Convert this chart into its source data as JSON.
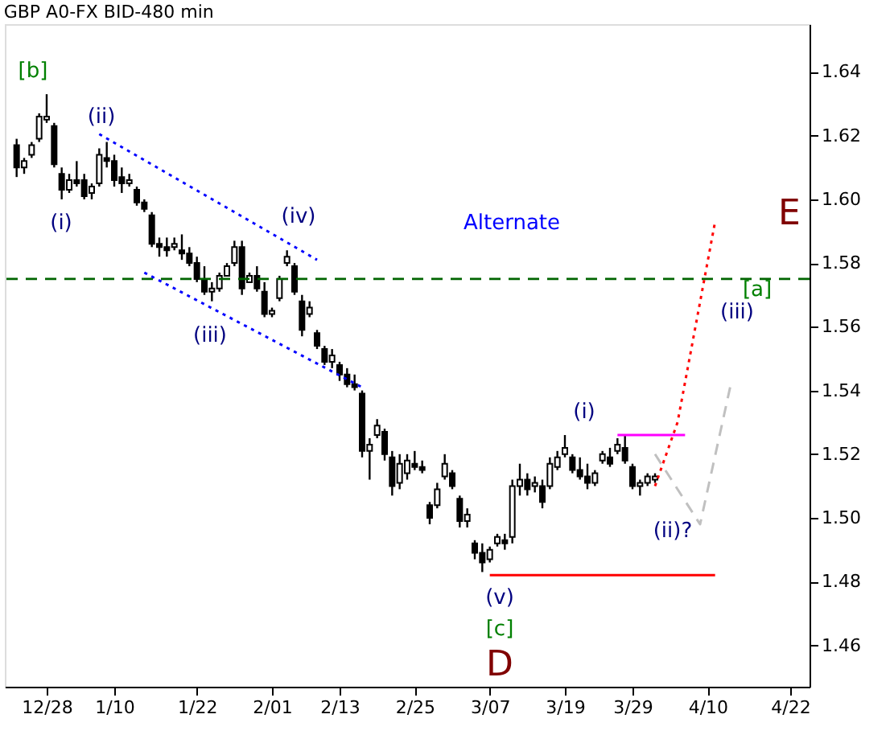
{
  "chart_data": {
    "type": "candlestick",
    "title": "GBP A0-FX BID-480 min",
    "categories": [
      null,
      null,
      null,
      null,
      "12/28",
      null,
      null,
      null,
      null,
      null,
      null,
      null,
      null,
      "1/10",
      null,
      null,
      null,
      null,
      null,
      null,
      null,
      null,
      null,
      null,
      "1/22",
      null,
      null,
      null,
      null,
      null,
      null,
      null,
      null,
      null,
      "2/01",
      null,
      null,
      null,
      null,
      null,
      null,
      null,
      null,
      "2/13",
      null,
      null,
      null,
      null,
      null,
      null,
      null,
      null,
      null,
      "2/25",
      null,
      null,
      null,
      null,
      null,
      null,
      null,
      null,
      null,
      "3/07",
      null,
      null,
      null,
      null,
      null,
      null,
      null,
      null,
      null,
      "3/19",
      null,
      null,
      null,
      null,
      null,
      null,
      null,
      null,
      "3/29",
      null,
      null,
      null,
      null,
      null,
      null,
      null,
      null,
      null,
      "4/10",
      null,
      null,
      null,
      null,
      null,
      null,
      null,
      null,
      null,
      null,
      "4/22",
      null
    ],
    "ohlc": [
      [
        1.617,
        1.619,
        1.607,
        1.61
      ],
      [
        1.61,
        1.613,
        1.608,
        1.612
      ],
      [
        1.614,
        1.618,
        1.613,
        1.617
      ],
      [
        1.619,
        1.627,
        1.618,
        1.626
      ],
      [
        1.625,
        1.633,
        1.624,
        1.626
      ],
      [
        1.623,
        1.624,
        1.61,
        1.611
      ],
      [
        1.608,
        1.61,
        1.6,
        1.603
      ],
      [
        1.603,
        1.608,
        1.602,
        1.606
      ],
      [
        1.606,
        1.612,
        1.604,
        1.605
      ],
      [
        1.606,
        1.608,
        1.6,
        1.601
      ],
      [
        1.602,
        1.605,
        1.6,
        1.604
      ],
      [
        1.605,
        1.616,
        1.604,
        1.614
      ],
      [
        1.613,
        1.618,
        1.61,
        1.612
      ],
      [
        1.612,
        1.614,
        1.604,
        1.606
      ],
      [
        1.607,
        1.61,
        1.602,
        1.605
      ],
      [
        1.605,
        1.608,
        1.604,
        1.606
      ],
      [
        1.603,
        1.604,
        1.598,
        1.599
      ],
      [
        1.599,
        1.6,
        1.596,
        1.597
      ],
      [
        1.595,
        1.596,
        1.585,
        1.586
      ],
      [
        1.586,
        1.588,
        1.582,
        1.585
      ],
      [
        1.585,
        1.588,
        1.582,
        1.584
      ],
      [
        1.585,
        1.588,
        1.584,
        1.586
      ],
      [
        1.584,
        1.589,
        1.581,
        1.583
      ],
      [
        1.583,
        1.585,
        1.579,
        1.58
      ],
      [
        1.58,
        1.582,
        1.574,
        1.575
      ],
      [
        1.575,
        1.579,
        1.57,
        1.571
      ],
      [
        1.571,
        1.574,
        1.568,
        1.572
      ],
      [
        1.572,
        1.577,
        1.571,
        1.576
      ],
      [
        1.576,
        1.58,
        1.576,
        1.579
      ],
      [
        1.58,
        1.587,
        1.579,
        1.585
      ],
      [
        1.585,
        1.587,
        1.57,
        1.572
      ],
      [
        1.574,
        1.577,
        1.574,
        1.576
      ],
      [
        1.576,
        1.579,
        1.571,
        1.572
      ],
      [
        1.571,
        1.574,
        1.563,
        1.564
      ],
      [
        1.564,
        1.566,
        1.563,
        1.565
      ],
      [
        1.569,
        1.576,
        1.568,
        1.575
      ],
      [
        1.58,
        1.584,
        1.579,
        1.582
      ],
      [
        1.579,
        1.58,
        1.57,
        1.571
      ],
      [
        1.568,
        1.57,
        1.557,
        1.559
      ],
      [
        1.564,
        1.568,
        1.563,
        1.566
      ],
      [
        1.558,
        1.559,
        1.553,
        1.554
      ],
      [
        1.553,
        1.554,
        1.548,
        1.549
      ],
      [
        1.549,
        1.553,
        1.547,
        1.551
      ],
      [
        1.548,
        1.549,
        1.543,
        1.545
      ],
      [
        1.545,
        1.547,
        1.541,
        1.542
      ],
      [
        1.542,
        1.545,
        1.54,
        1.541
      ],
      [
        1.539,
        1.54,
        1.519,
        1.521
      ],
      [
        1.521,
        1.525,
        1.512,
        1.523
      ],
      [
        1.526,
        1.531,
        1.525,
        1.529
      ],
      [
        1.527,
        1.528,
        1.518,
        1.52
      ],
      [
        1.519,
        1.521,
        1.507,
        1.51
      ],
      [
        1.511,
        1.52,
        1.509,
        1.517
      ],
      [
        1.514,
        1.52,
        1.512,
        1.518
      ],
      [
        1.517,
        1.521,
        1.515,
        1.516
      ],
      [
        1.516,
        1.518,
        1.514,
        1.515
      ],
      [
        1.504,
        1.505,
        1.498,
        1.5
      ],
      [
        1.504,
        1.511,
        1.503,
        1.509
      ],
      [
        1.513,
        1.52,
        1.512,
        1.517
      ],
      [
        1.514,
        1.515,
        1.509,
        1.51
      ],
      [
        1.506,
        1.507,
        1.497,
        1.499
      ],
      [
        1.499,
        1.503,
        1.497,
        1.501
      ],
      [
        1.492,
        1.493,
        1.487,
        1.489
      ],
      [
        1.489,
        1.492,
        1.483,
        1.486
      ],
      [
        1.487,
        1.491,
        1.486,
        1.49
      ],
      [
        1.492,
        1.495,
        1.491,
        1.494
      ],
      [
        1.493,
        1.495,
        1.49,
        1.492
      ],
      [
        1.494,
        1.512,
        1.492,
        1.51
      ],
      [
        1.51,
        1.517,
        1.507,
        1.512
      ],
      [
        1.512,
        1.514,
        1.507,
        1.509
      ],
      [
        1.51,
        1.513,
        1.508,
        1.511
      ],
      [
        1.51,
        1.512,
        1.503,
        1.505
      ],
      [
        1.51,
        1.519,
        1.509,
        1.517
      ],
      [
        1.516,
        1.521,
        1.515,
        1.519
      ],
      [
        1.52,
        1.526,
        1.519,
        1.522
      ],
      [
        1.519,
        1.52,
        1.514,
        1.515
      ],
      [
        1.515,
        1.519,
        1.512,
        1.513
      ],
      [
        1.513,
        1.517,
        1.509,
        1.511
      ],
      [
        1.511,
        1.515,
        1.51,
        1.514
      ],
      [
        1.518,
        1.521,
        1.517,
        1.52
      ],
      [
        1.519,
        1.522,
        1.516,
        1.517
      ],
      [
        1.521,
        1.525,
        1.52,
        1.523
      ],
      [
        1.522,
        1.526,
        1.517,
        1.518
      ],
      [
        1.516,
        1.517,
        1.509,
        1.51
      ],
      [
        1.51,
        1.512,
        1.507,
        1.511
      ],
      [
        1.511,
        1.514,
        1.51,
        1.513
      ],
      [
        1.512,
        1.514,
        1.511,
        1.513
      ],
      null,
      null,
      null,
      null,
      null,
      null,
      null,
      null,
      null,
      null,
      null,
      null,
      null,
      null,
      null,
      null,
      null,
      null,
      null
    ],
    "color": "#000000",
    "series": [
      {
        "type": "line",
        "color": "#0000ff",
        "line_style": "dotted",
        "values": [
          null,
          null,
          null,
          null,
          null,
          null,
          null,
          null,
          null,
          null,
          null,
          1.6205,
          null,
          null,
          null,
          null,
          null,
          null,
          null,
          null,
          null,
          null,
          null,
          null,
          null,
          null,
          null,
          null,
          null,
          null,
          null,
          null,
          null,
          null,
          null,
          null,
          null,
          null,
          null,
          null,
          1.581,
          null,
          null,
          null,
          null,
          null,
          null,
          null,
          null,
          null,
          null,
          null,
          null,
          null,
          null,
          null,
          null,
          null,
          null,
          null,
          null,
          null,
          null,
          null,
          null,
          null,
          null,
          null,
          null,
          null,
          null,
          null,
          null,
          null,
          null,
          null,
          null,
          null,
          null,
          null,
          null,
          null,
          null,
          null,
          null,
          null,
          null,
          null,
          null,
          null,
          null,
          null,
          null,
          null,
          null,
          null,
          null,
          null,
          null,
          null,
          null,
          null,
          null,
          null,
          null
        ]
      },
      {
        "type": "line",
        "color": "#0000ff",
        "line_style": "dotted",
        "values": [
          null,
          null,
          null,
          null,
          null,
          null,
          null,
          null,
          null,
          null,
          null,
          null,
          null,
          null,
          null,
          null,
          null,
          1.577,
          null,
          null,
          null,
          null,
          null,
          null,
          null,
          null,
          null,
          null,
          null,
          null,
          null,
          null,
          null,
          null,
          null,
          null,
          null,
          null,
          null,
          null,
          null,
          null,
          null,
          null,
          null,
          null,
          1.541,
          null,
          null,
          null,
          null,
          null,
          null,
          null,
          null,
          null,
          null,
          null,
          null,
          null,
          null,
          null,
          null,
          null,
          null,
          null,
          null,
          null,
          null,
          null,
          null,
          null,
          null,
          null,
          null,
          null,
          null,
          null,
          null,
          null,
          null,
          null,
          null,
          null,
          null,
          null,
          null,
          null,
          null,
          null,
          null,
          null,
          null,
          null,
          null,
          null,
          null,
          null,
          null,
          null,
          null,
          null,
          null,
          null,
          null
        ]
      },
      {
        "type": "line",
        "color": "#ff0000",
        "line_style": "solid",
        "values": [
          null,
          null,
          null,
          null,
          null,
          null,
          null,
          null,
          null,
          null,
          null,
          null,
          null,
          null,
          null,
          null,
          null,
          null,
          null,
          null,
          null,
          null,
          null,
          null,
          null,
          null,
          null,
          null,
          null,
          null,
          null,
          null,
          null,
          null,
          null,
          null,
          null,
          null,
          null,
          null,
          null,
          null,
          null,
          null,
          null,
          null,
          null,
          null,
          null,
          null,
          null,
          null,
          null,
          null,
          null,
          null,
          null,
          null,
          null,
          null,
          null,
          null,
          null,
          1.482,
          null,
          null,
          null,
          null,
          null,
          null,
          null,
          null,
          null,
          null,
          null,
          null,
          null,
          null,
          null,
          null,
          null,
          null,
          null,
          null,
          null,
          null,
          null,
          null,
          null,
          null,
          null,
          null,
          null,
          1.482,
          null,
          null,
          null,
          null,
          null,
          null,
          null,
          null,
          null,
          null,
          null
        ]
      },
      {
        "type": "line",
        "color": "#ff00ff",
        "line_style": "solid",
        "values": [
          null,
          null,
          null,
          null,
          null,
          null,
          null,
          null,
          null,
          null,
          null,
          null,
          null,
          null,
          null,
          null,
          null,
          null,
          null,
          null,
          null,
          null,
          null,
          null,
          null,
          null,
          null,
          null,
          null,
          null,
          null,
          null,
          null,
          null,
          null,
          null,
          null,
          null,
          null,
          null,
          null,
          null,
          null,
          null,
          null,
          null,
          null,
          null,
          null,
          null,
          null,
          null,
          null,
          null,
          null,
          null,
          null,
          null,
          null,
          null,
          null,
          null,
          null,
          null,
          null,
          null,
          null,
          null,
          null,
          null,
          null,
          null,
          null,
          null,
          null,
          null,
          null,
          null,
          null,
          null,
          1.526,
          null,
          null,
          null,
          null,
          null,
          null,
          null,
          null,
          1.526,
          null,
          null,
          null,
          null,
          null,
          null,
          null,
          null,
          null,
          null,
          null,
          null,
          null,
          null,
          null
        ]
      },
      {
        "type": "line",
        "color": "#ff0000",
        "line_style": "dotted",
        "values": [
          null,
          null,
          null,
          null,
          null,
          null,
          null,
          null,
          null,
          null,
          null,
          null,
          null,
          null,
          null,
          null,
          null,
          null,
          null,
          null,
          null,
          null,
          null,
          null,
          null,
          null,
          null,
          null,
          null,
          null,
          null,
          null,
          null,
          null,
          null,
          null,
          null,
          null,
          null,
          null,
          null,
          null,
          null,
          null,
          null,
          null,
          null,
          null,
          null,
          null,
          null,
          null,
          null,
          null,
          null,
          null,
          null,
          null,
          null,
          null,
          null,
          null,
          null,
          null,
          null,
          null,
          null,
          null,
          null,
          null,
          null,
          null,
          null,
          null,
          null,
          null,
          null,
          null,
          null,
          null,
          null,
          null,
          null,
          null,
          null,
          1.51,
          null,
          null,
          1.53,
          null,
          null,
          null,
          null,
          1.593,
          null,
          null,
          null,
          null,
          null,
          null,
          null,
          null,
          null,
          null,
          null
        ]
      },
      {
        "type": "line",
        "color": "#c0c0c0",
        "line_style": "dashed",
        "values": [
          null,
          null,
          null,
          null,
          null,
          null,
          null,
          null,
          null,
          null,
          null,
          null,
          null,
          null,
          null,
          null,
          null,
          null,
          null,
          null,
          null,
          null,
          null,
          null,
          null,
          null,
          null,
          null,
          null,
          null,
          null,
          null,
          null,
          null,
          null,
          null,
          null,
          null,
          null,
          null,
          null,
          null,
          null,
          null,
          null,
          null,
          null,
          null,
          null,
          null,
          null,
          null,
          null,
          null,
          null,
          null,
          null,
          null,
          null,
          null,
          null,
          null,
          null,
          null,
          null,
          null,
          null,
          null,
          null,
          null,
          null,
          null,
          null,
          null,
          null,
          null,
          null,
          null,
          null,
          null,
          null,
          null,
          null,
          null,
          null,
          1.52,
          null,
          null,
          null,
          null,
          null,
          1.498,
          null,
          null,
          null,
          1.541,
          null,
          null,
          null,
          null,
          null,
          null,
          null,
          null,
          null
        ]
      }
    ],
    "ref_lines": [
      {
        "axis": "y",
        "value": 1.575,
        "color": "#006400",
        "line_style": "dashed"
      }
    ],
    "annotations": [
      "[b]",
      "(ii)",
      "(i)",
      "(iv)",
      "(iii)",
      "Alternate",
      "E",
      "[a]",
      "(iii)",
      "(i)",
      "(ii)?",
      "(v)",
      "[c]",
      "D"
    ],
    "ylim": [
      1.447,
      1.655
    ],
    "yticks": [
      {
        "value": 1.46,
        "label": "1.46"
      },
      {
        "value": 1.48,
        "label": "1.48"
      },
      {
        "value": 1.5,
        "label": "1.50"
      },
      {
        "value": 1.52,
        "label": "1.52"
      },
      {
        "value": 1.54,
        "label": "1.54"
      },
      {
        "value": 1.56,
        "label": "1.56"
      },
      {
        "value": 1.58,
        "label": "1.58"
      },
      {
        "value": 1.6,
        "label": "1.60"
      },
      {
        "value": 1.62,
        "label": "1.62"
      },
      {
        "value": 1.64,
        "label": "1.64"
      }
    ],
    "grid": false
  }
}
